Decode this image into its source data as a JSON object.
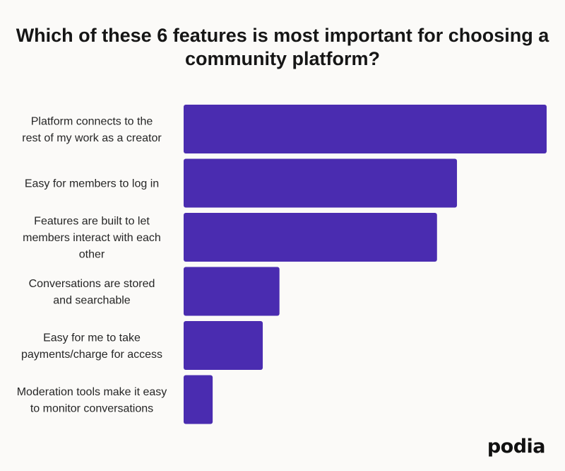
{
  "chart_data": {
    "type": "bar",
    "orientation": "horizontal",
    "title": "Which of these 6 features is most important for choosing a community platform?",
    "categories": [
      [
        "Platform connects to the",
        "rest of my work as a creator"
      ],
      [
        "Easy for members to log in"
      ],
      [
        "Features are built to let",
        "members interact with each",
        "other"
      ],
      [
        "Conversations are stored",
        "and searchable"
      ],
      [
        "Easy for me to take",
        "payments/charge for access"
      ],
      [
        "Moderation tools make it easy",
        "to monitor conversations"
      ]
    ],
    "values": [
      100,
      75.3,
      69.8,
      26.4,
      21.8,
      8.0
    ],
    "xlim": [
      0,
      100
    ],
    "bar_color": "#4a2cb0",
    "grid": false,
    "legend": "none",
    "xlabel": "",
    "ylabel": ""
  },
  "brand": {
    "logo_text": "podia"
  }
}
